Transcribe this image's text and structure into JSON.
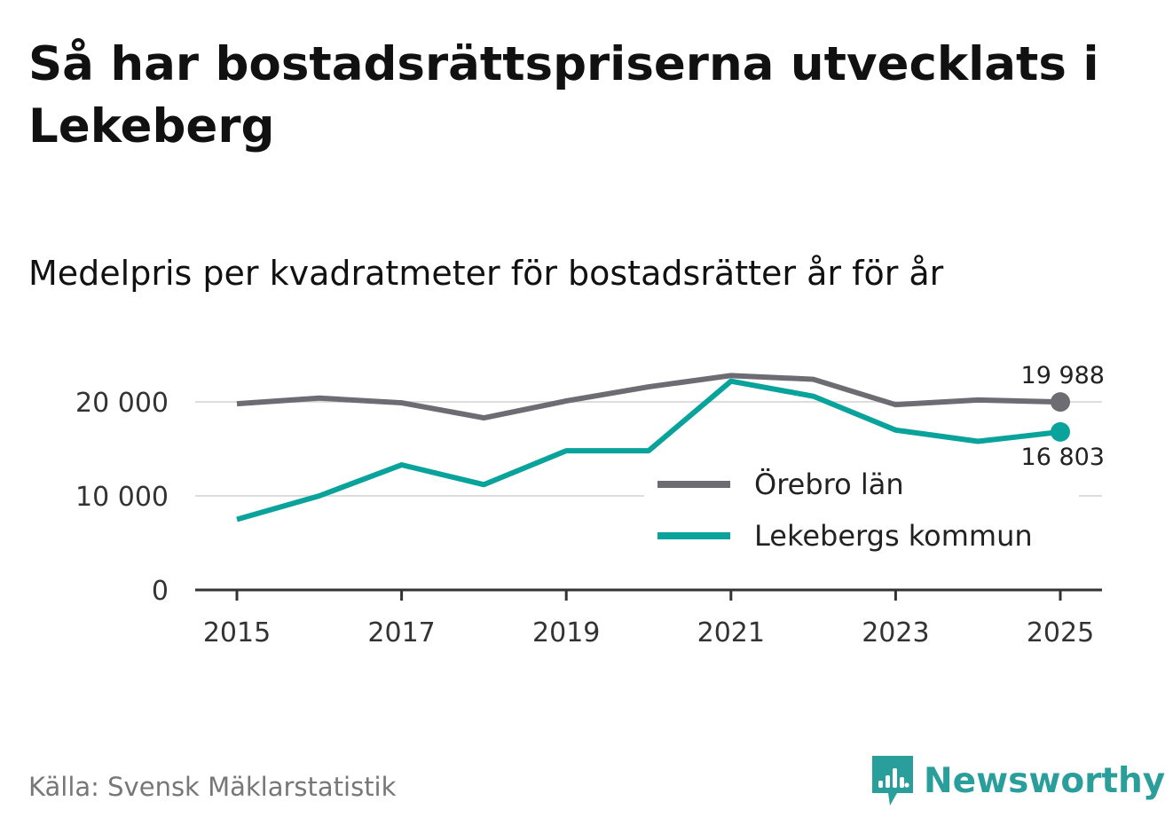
{
  "header": {
    "title": "Så har bostadsrättspriserna utvecklats i Lekeberg",
    "subtitle": "Medelpris per kvadratmeter för bostadsrätter år för år"
  },
  "footer": {
    "source": "Källa: Svensk Mäklarstatistik",
    "brand": "Newsworthy"
  },
  "colors": {
    "orebro": "#6d6c72",
    "lekeberg": "#0aa39b",
    "grid": "#dddddd",
    "axis": "#333333",
    "brand": "#2a9e9a"
  },
  "chart_data": {
    "type": "line",
    "title": "Medelpris per kvadratmeter för bostadsrätter år för år",
    "xlabel": "",
    "ylabel": "",
    "x": [
      2015,
      2016,
      2017,
      2018,
      2019,
      2020,
      2021,
      2022,
      2023,
      2024,
      2025
    ],
    "xticks": [
      "2015",
      "2017",
      "2019",
      "2021",
      "2023",
      "2025"
    ],
    "ylim": [
      0,
      21000
    ],
    "yticks": [
      {
        "value": 0,
        "label": "0"
      },
      {
        "value": 10000,
        "label": "10 000"
      },
      {
        "value": 20000,
        "label": "20 000"
      }
    ],
    "grid": true,
    "legend": "center-right",
    "series": [
      {
        "name": "Örebro län",
        "color": "#6d6c72",
        "values": [
          19800,
          20400,
          19900,
          18300,
          20100,
          21600,
          22800,
          22400,
          19700,
          20200,
          19988
        ],
        "end_label": "19 988"
      },
      {
        "name": "Lekebergs kommun",
        "color": "#0aa39b",
        "values": [
          7500,
          10000,
          13300,
          11200,
          14800,
          14800,
          22200,
          20600,
          17000,
          15800,
          16803
        ],
        "end_label": "16 803"
      }
    ]
  }
}
